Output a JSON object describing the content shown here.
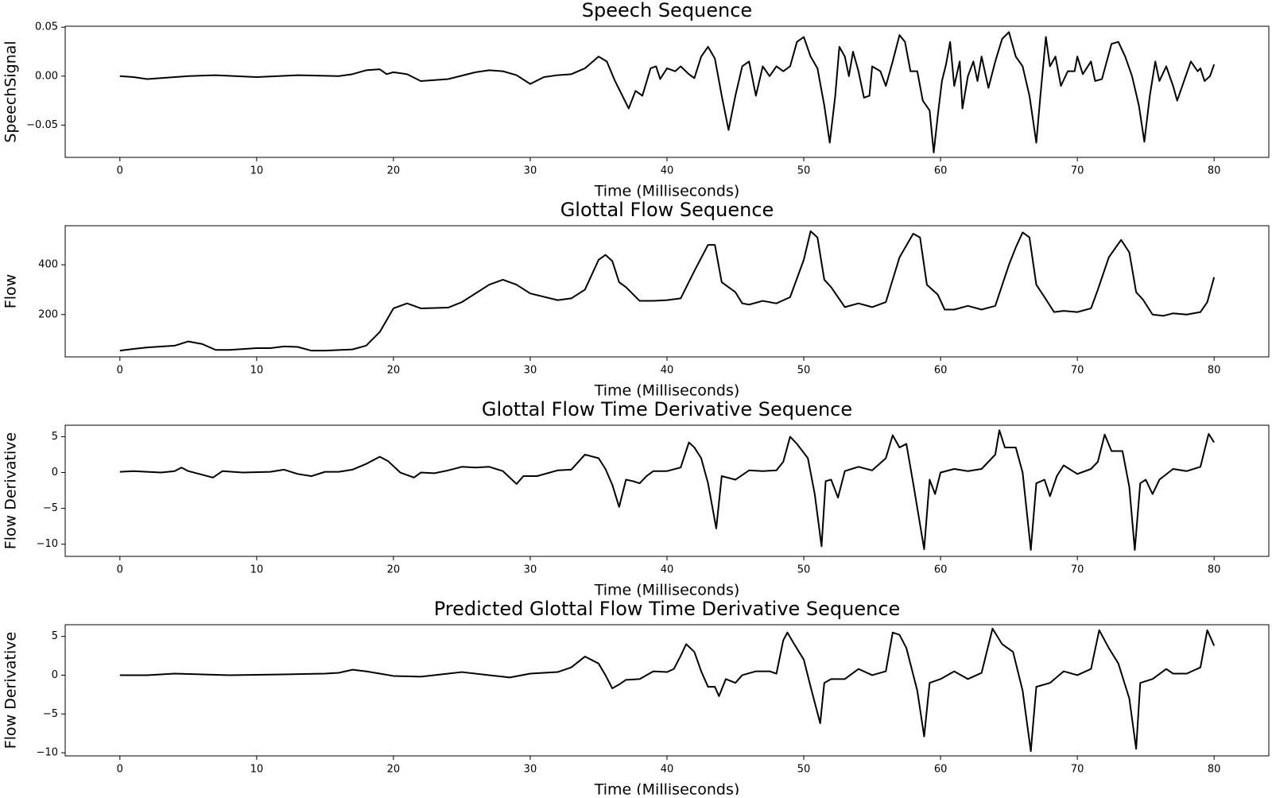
{
  "chart_data": [
    {
      "type": "line",
      "title": "Speech Sequence",
      "xlabel": "Time (Milliseconds)",
      "ylabel": "SpeechSignal",
      "color": "#000000",
      "xlim": [
        -4,
        84
      ],
      "xticks": [
        0,
        10,
        20,
        30,
        40,
        50,
        60,
        70,
        80
      ],
      "ylim": [
        -0.083,
        0.051
      ],
      "yticks": [
        {
          "value": 0.05,
          "label": "0.05"
        },
        {
          "value": 0,
          "label": "0.00"
        },
        {
          "value": -0.05,
          "label": "−0.05"
        }
      ],
      "x": [
        0,
        1,
        2,
        3,
        5,
        7,
        10,
        13,
        16,
        17,
        18,
        19,
        19.5,
        20,
        21,
        22,
        24,
        26,
        27,
        28,
        29,
        30,
        31,
        32,
        33,
        34,
        35,
        35.6,
        36.2,
        37.2,
        37.7,
        38.2,
        38.8,
        39.2,
        39.5,
        40,
        40.6,
        41,
        41.6,
        42,
        42.5,
        43,
        43.5,
        44,
        44.5,
        45,
        45.5,
        46,
        46.5,
        47,
        47.5,
        48,
        48.5,
        49,
        49.5,
        50,
        50.5,
        51,
        51.5,
        51.9,
        52.3,
        52.6,
        53,
        53.3,
        53.6,
        54,
        54.4,
        54.8,
        55,
        55.6,
        56,
        56.5,
        57,
        57.4,
        57.8,
        58.3,
        58.7,
        59.2,
        59.5,
        59.8,
        60.1,
        60.4,
        60.7,
        61,
        61.4,
        61.6,
        62,
        62.4,
        62.7,
        63,
        63.5,
        64,
        64.5,
        65,
        65.5,
        66,
        66.5,
        67,
        67.3,
        67.7,
        68,
        68.4,
        68.8,
        69.3,
        69.8,
        70,
        70.4,
        71,
        71.3,
        71.8,
        72.5,
        73,
        73.5,
        74,
        74.5,
        74.9,
        75.3,
        75.7,
        76,
        76.5,
        77,
        77.3,
        77.8,
        78.3,
        78.8,
        79,
        79.3,
        79.7,
        80
      ],
      "values": [
        0,
        -0.001,
        -0.003,
        -0.002,
        0,
        0.001,
        -0.001,
        0.001,
        0,
        0.002,
        0.006,
        0.007,
        0.002,
        0.004,
        0.002,
        -0.005,
        -0.003,
        0.004,
        0.006,
        0.005,
        0.001,
        -0.008,
        -0.001,
        0.001,
        0.002,
        0.008,
        0.02,
        0.015,
        -0.005,
        -0.033,
        -0.015,
        -0.02,
        0.008,
        0.01,
        -0.003,
        0.008,
        0.005,
        0.01,
        0.002,
        -0.002,
        0.02,
        0.03,
        0.018,
        -0.02,
        -0.055,
        -0.02,
        0.01,
        0.015,
        -0.02,
        0.01,
        0,
        0.01,
        0.005,
        0.01,
        0.035,
        0.04,
        0.02,
        0.008,
        -0.03,
        -0.068,
        -0.02,
        0.03,
        0.02,
        0,
        0.025,
        0.005,
        -0.022,
        -0.02,
        0.01,
        0.005,
        -0.01,
        0.015,
        0.042,
        0.035,
        0.005,
        0.005,
        -0.025,
        -0.035,
        -0.078,
        -0.04,
        -0.005,
        0.012,
        0.035,
        -0.01,
        0.015,
        -0.033,
        0,
        0.015,
        -0.005,
        0.02,
        -0.012,
        0.015,
        0.038,
        0.045,
        0.02,
        0.01,
        -0.02,
        -0.068,
        -0.02,
        0.04,
        0.01,
        0.02,
        -0.01,
        0.005,
        0.005,
        0.02,
        0.002,
        0.015,
        -0.005,
        -0.003,
        0.033,
        0.035,
        0.02,
        0,
        -0.03,
        -0.067,
        -0.02,
        0.015,
        -0.005,
        0.01,
        -0.01,
        -0.025,
        -0.005,
        0.015,
        0.005,
        0.008,
        -0.005,
        0,
        0.012
      ]
    },
    {
      "type": "line",
      "title": "Glottal Flow Sequence",
      "xlabel": "Time (Milliseconds)",
      "ylabel": "Flow",
      "color": "#000000",
      "xlim": [
        -4,
        84
      ],
      "xticks": [
        0,
        10,
        20,
        30,
        40,
        50,
        60,
        70,
        80
      ],
      "ylim": [
        30,
        557
      ],
      "yticks": [
        200,
        400
      ],
      "x": [
        0,
        1,
        2,
        4,
        5,
        6,
        7,
        8,
        10,
        11,
        12,
        13,
        14,
        15,
        17,
        18,
        19,
        20,
        21,
        22,
        24,
        25,
        27,
        28,
        29,
        30,
        32,
        33,
        34,
        35,
        35.5,
        36,
        36.5,
        37,
        38,
        39,
        40,
        41,
        42,
        43,
        43.5,
        44,
        45,
        45.5,
        46,
        47,
        48,
        49,
        50,
        50.5,
        51,
        51.5,
        52,
        53,
        54,
        55,
        56,
        57,
        58,
        58.5,
        59,
        59.8,
        60.3,
        61,
        62,
        63,
        64,
        65,
        65.5,
        66,
        66.5,
        67,
        67.6,
        68.3,
        69,
        70,
        71,
        71.5,
        72.3,
        73.2,
        73.8,
        74.3,
        74.8,
        75.5,
        76.3,
        77,
        78,
        79,
        79.5,
        80
      ],
      "values": [
        55,
        62,
        68,
        75,
        92,
        82,
        58,
        58,
        65,
        65,
        72,
        70,
        55,
        55,
        60,
        75,
        130,
        225,
        245,
        225,
        228,
        250,
        320,
        340,
        320,
        285,
        258,
        265,
        300,
        420,
        440,
        415,
        330,
        310,
        255,
        255,
        258,
        265,
        375,
        480,
        480,
        330,
        290,
        245,
        240,
        255,
        245,
        270,
        420,
        535,
        510,
        340,
        310,
        230,
        245,
        230,
        250,
        430,
        525,
        510,
        320,
        280,
        220,
        220,
        235,
        220,
        235,
        400,
        470,
        530,
        510,
        320,
        270,
        210,
        215,
        210,
        225,
        300,
        430,
        500,
        450,
        290,
        260,
        200,
        195,
        205,
        200,
        210,
        250,
        350
      ]
    },
    {
      "type": "line",
      "title": "Glottal Flow Time Derivative Sequence",
      "xlabel": "Time (Milliseconds)",
      "ylabel": "Flow Derivative",
      "color": "#000000",
      "xlim": [
        -4,
        84
      ],
      "xticks": [
        0,
        10,
        20,
        30,
        40,
        50,
        60,
        70,
        80
      ],
      "ylim": [
        -11.7,
        6.6
      ],
      "yticks": [
        5,
        0,
        {
          "value": -5,
          "label": "−5"
        },
        {
          "value": -10,
          "label": "−10"
        }
      ],
      "x": [
        0,
        1,
        3,
        4,
        4.5,
        5,
        6,
        6.8,
        7.5,
        9,
        11,
        12,
        13,
        14,
        15,
        16,
        17,
        18,
        19,
        19.6,
        20.5,
        21.5,
        22,
        23,
        24,
        25,
        26,
        27,
        28,
        29,
        29.5,
        30.5,
        32,
        33,
        34,
        35,
        35.5,
        36,
        36.5,
        37,
        37.5,
        38,
        38.5,
        39,
        40,
        41,
        41.6,
        42,
        42.5,
        43,
        43.6,
        44,
        45,
        46,
        47,
        48,
        48.5,
        49,
        49.5,
        50.3,
        50.8,
        51.3,
        51.6,
        52,
        52.5,
        53,
        53.5,
        54,
        55,
        56,
        56.5,
        57,
        57.5,
        58,
        58.8,
        59.2,
        59.6,
        60,
        61,
        62,
        63,
        64,
        64.3,
        64.7,
        65.5,
        66,
        66.6,
        67,
        67.6,
        68,
        68.5,
        69,
        70,
        71,
        71.5,
        72,
        72.5,
        73.3,
        73.8,
        74.2,
        74.6,
        75,
        75.5,
        76,
        77,
        78,
        79,
        79.6,
        80
      ],
      "values": [
        0.1,
        0.2,
        0,
        0.2,
        0.7,
        0.2,
        -0.3,
        -0.7,
        0.2,
        0,
        0.1,
        0.4,
        -0.2,
        -0.5,
        0.1,
        0.1,
        0.4,
        1.2,
        2.2,
        1.6,
        0,
        -0.7,
        0,
        -0.1,
        0.3,
        0.8,
        0.7,
        0.8,
        0.2,
        -1.6,
        -0.5,
        -0.5,
        0.3,
        0.4,
        2.5,
        2,
        0.5,
        -1.7,
        -4.8,
        -1,
        -1.2,
        -1.5,
        -0.5,
        0.2,
        0.2,
        0.7,
        4.2,
        3.5,
        2,
        -1.5,
        -7.8,
        -0.5,
        -1,
        0.3,
        0.2,
        0.3,
        1.5,
        5,
        4,
        2,
        -3,
        -10.3,
        -1.2,
        -1,
        -3.5,
        0.2,
        0.5,
        0.8,
        0.3,
        2,
        5.2,
        3.5,
        4,
        -1.5,
        -10.7,
        -1,
        -3,
        0,
        0.5,
        0.2,
        0.5,
        2.5,
        5.9,
        3.5,
        3.5,
        0,
        -10.8,
        -1.5,
        -1,
        -3.3,
        -0.5,
        1,
        -0.2,
        0.5,
        1.5,
        5.3,
        3,
        3,
        -2,
        -10.8,
        -1.5,
        -1,
        -3,
        -1,
        0.5,
        0.2,
        0.8,
        5.4,
        4.2
      ]
    },
    {
      "type": "line",
      "title": "Predicted Glottal Flow Time Derivative Sequence",
      "xlabel": "Time (Milliseconds)",
      "ylabel": "Flow Derivative",
      "color": "#000000",
      "xlim": [
        -4,
        84
      ],
      "xticks": [
        0,
        10,
        20,
        30,
        40,
        50,
        60,
        70,
        80
      ],
      "ylim": [
        -10.4,
        6.5
      ],
      "yticks": [
        5,
        0,
        {
          "value": -5,
          "label": "−5"
        },
        {
          "value": -10,
          "label": "−10"
        }
      ],
      "x": [
        0,
        2,
        4,
        8,
        12,
        15,
        16,
        17,
        18,
        19,
        20,
        22,
        24,
        25,
        27,
        28.5,
        30,
        32,
        33,
        34,
        35,
        35.5,
        36,
        36.5,
        37,
        38,
        39,
        40,
        40.5,
        41,
        41.4,
        42,
        42.5,
        43,
        43.5,
        43.8,
        44.3,
        45,
        45.5,
        46.5,
        47.5,
        48,
        48.5,
        48.8,
        49.3,
        50,
        50.5,
        51.2,
        51.5,
        52,
        53,
        54,
        55,
        56,
        56.5,
        57,
        57.5,
        58.3,
        58.8,
        59.2,
        60,
        61,
        62,
        63,
        63.8,
        64.5,
        65.3,
        66,
        66.6,
        67,
        68,
        69,
        70,
        71,
        71.6,
        72.3,
        73,
        73.8,
        74.3,
        74.6,
        75.5,
        76.5,
        77,
        78,
        79,
        79.5,
        80
      ],
      "values": [
        0,
        0,
        0.2,
        0,
        0.1,
        0.2,
        0.3,
        0.7,
        0.5,
        0.2,
        -0.1,
        -0.2,
        0.2,
        0.4,
        0,
        -0.3,
        0.2,
        0.4,
        1,
        2.4,
        1.5,
        0,
        -1.7,
        -1.2,
        -0.6,
        -0.5,
        0.5,
        0.4,
        0.8,
        2.5,
        4,
        3,
        0.5,
        -1.5,
        -1.5,
        -2.7,
        -0.5,
        -1,
        0,
        0.5,
        0.5,
        0.2,
        4.5,
        5.5,
        4,
        2,
        -1.5,
        -6.2,
        -1,
        -0.5,
        -0.5,
        0.8,
        0,
        0.5,
        5.5,
        5.2,
        3.5,
        -2,
        -7.9,
        -1,
        -0.5,
        0.5,
        -0.5,
        0.3,
        6,
        4,
        3,
        -2,
        -9.8,
        -1.5,
        -1,
        0.5,
        0,
        0.8,
        5.8,
        3.5,
        1.5,
        -3,
        -9.5,
        -1,
        -0.5,
        0.8,
        0.2,
        0.2,
        1,
        5.8,
        3.8
      ]
    }
  ]
}
